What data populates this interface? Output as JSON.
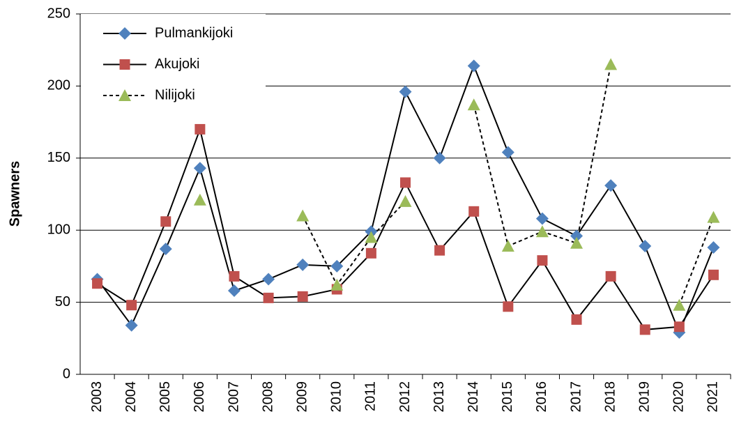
{
  "chart_data": {
    "type": "line",
    "y_label": "Spawners",
    "categories": [
      "2003",
      "2004",
      "2005",
      "2006",
      "2007",
      "2008",
      "2009",
      "2010",
      "2011",
      "2012",
      "2013",
      "2014",
      "2015",
      "2016",
      "2017",
      "2018",
      "2019",
      "2020",
      "2021"
    ],
    "series": [
      {
        "name": "Pulmankijoki",
        "color": "#4f81bd",
        "line_color": "#000000",
        "marker": "diamond",
        "dashed": false,
        "values": [
          66,
          34,
          87,
          143,
          58,
          66,
          76,
          75,
          99,
          196,
          150,
          214,
          154,
          108,
          96,
          131,
          89,
          29,
          88
        ]
      },
      {
        "name": "Akujoki",
        "color": "#c0504d",
        "line_color": "#000000",
        "marker": "square",
        "dashed": false,
        "values": [
          63,
          48,
          106,
          170,
          68,
          53,
          54,
          59,
          84,
          133,
          86,
          113,
          47,
          79,
          38,
          68,
          31,
          33,
          69
        ]
      },
      {
        "name": "Nilijoki",
        "color": "#9bbb59",
        "line_color": "#000000",
        "marker": "triangle",
        "dashed": true,
        "values": [
          null,
          null,
          null,
          121,
          null,
          null,
          110,
          62,
          95,
          120,
          null,
          187,
          89,
          99,
          91,
          215,
          null,
          48,
          109
        ]
      }
    ],
    "ylim": [
      0,
      250
    ],
    "yticks": [
      0,
      50,
      100,
      150,
      200,
      250
    ],
    "grid": true,
    "legend": "top-left"
  }
}
